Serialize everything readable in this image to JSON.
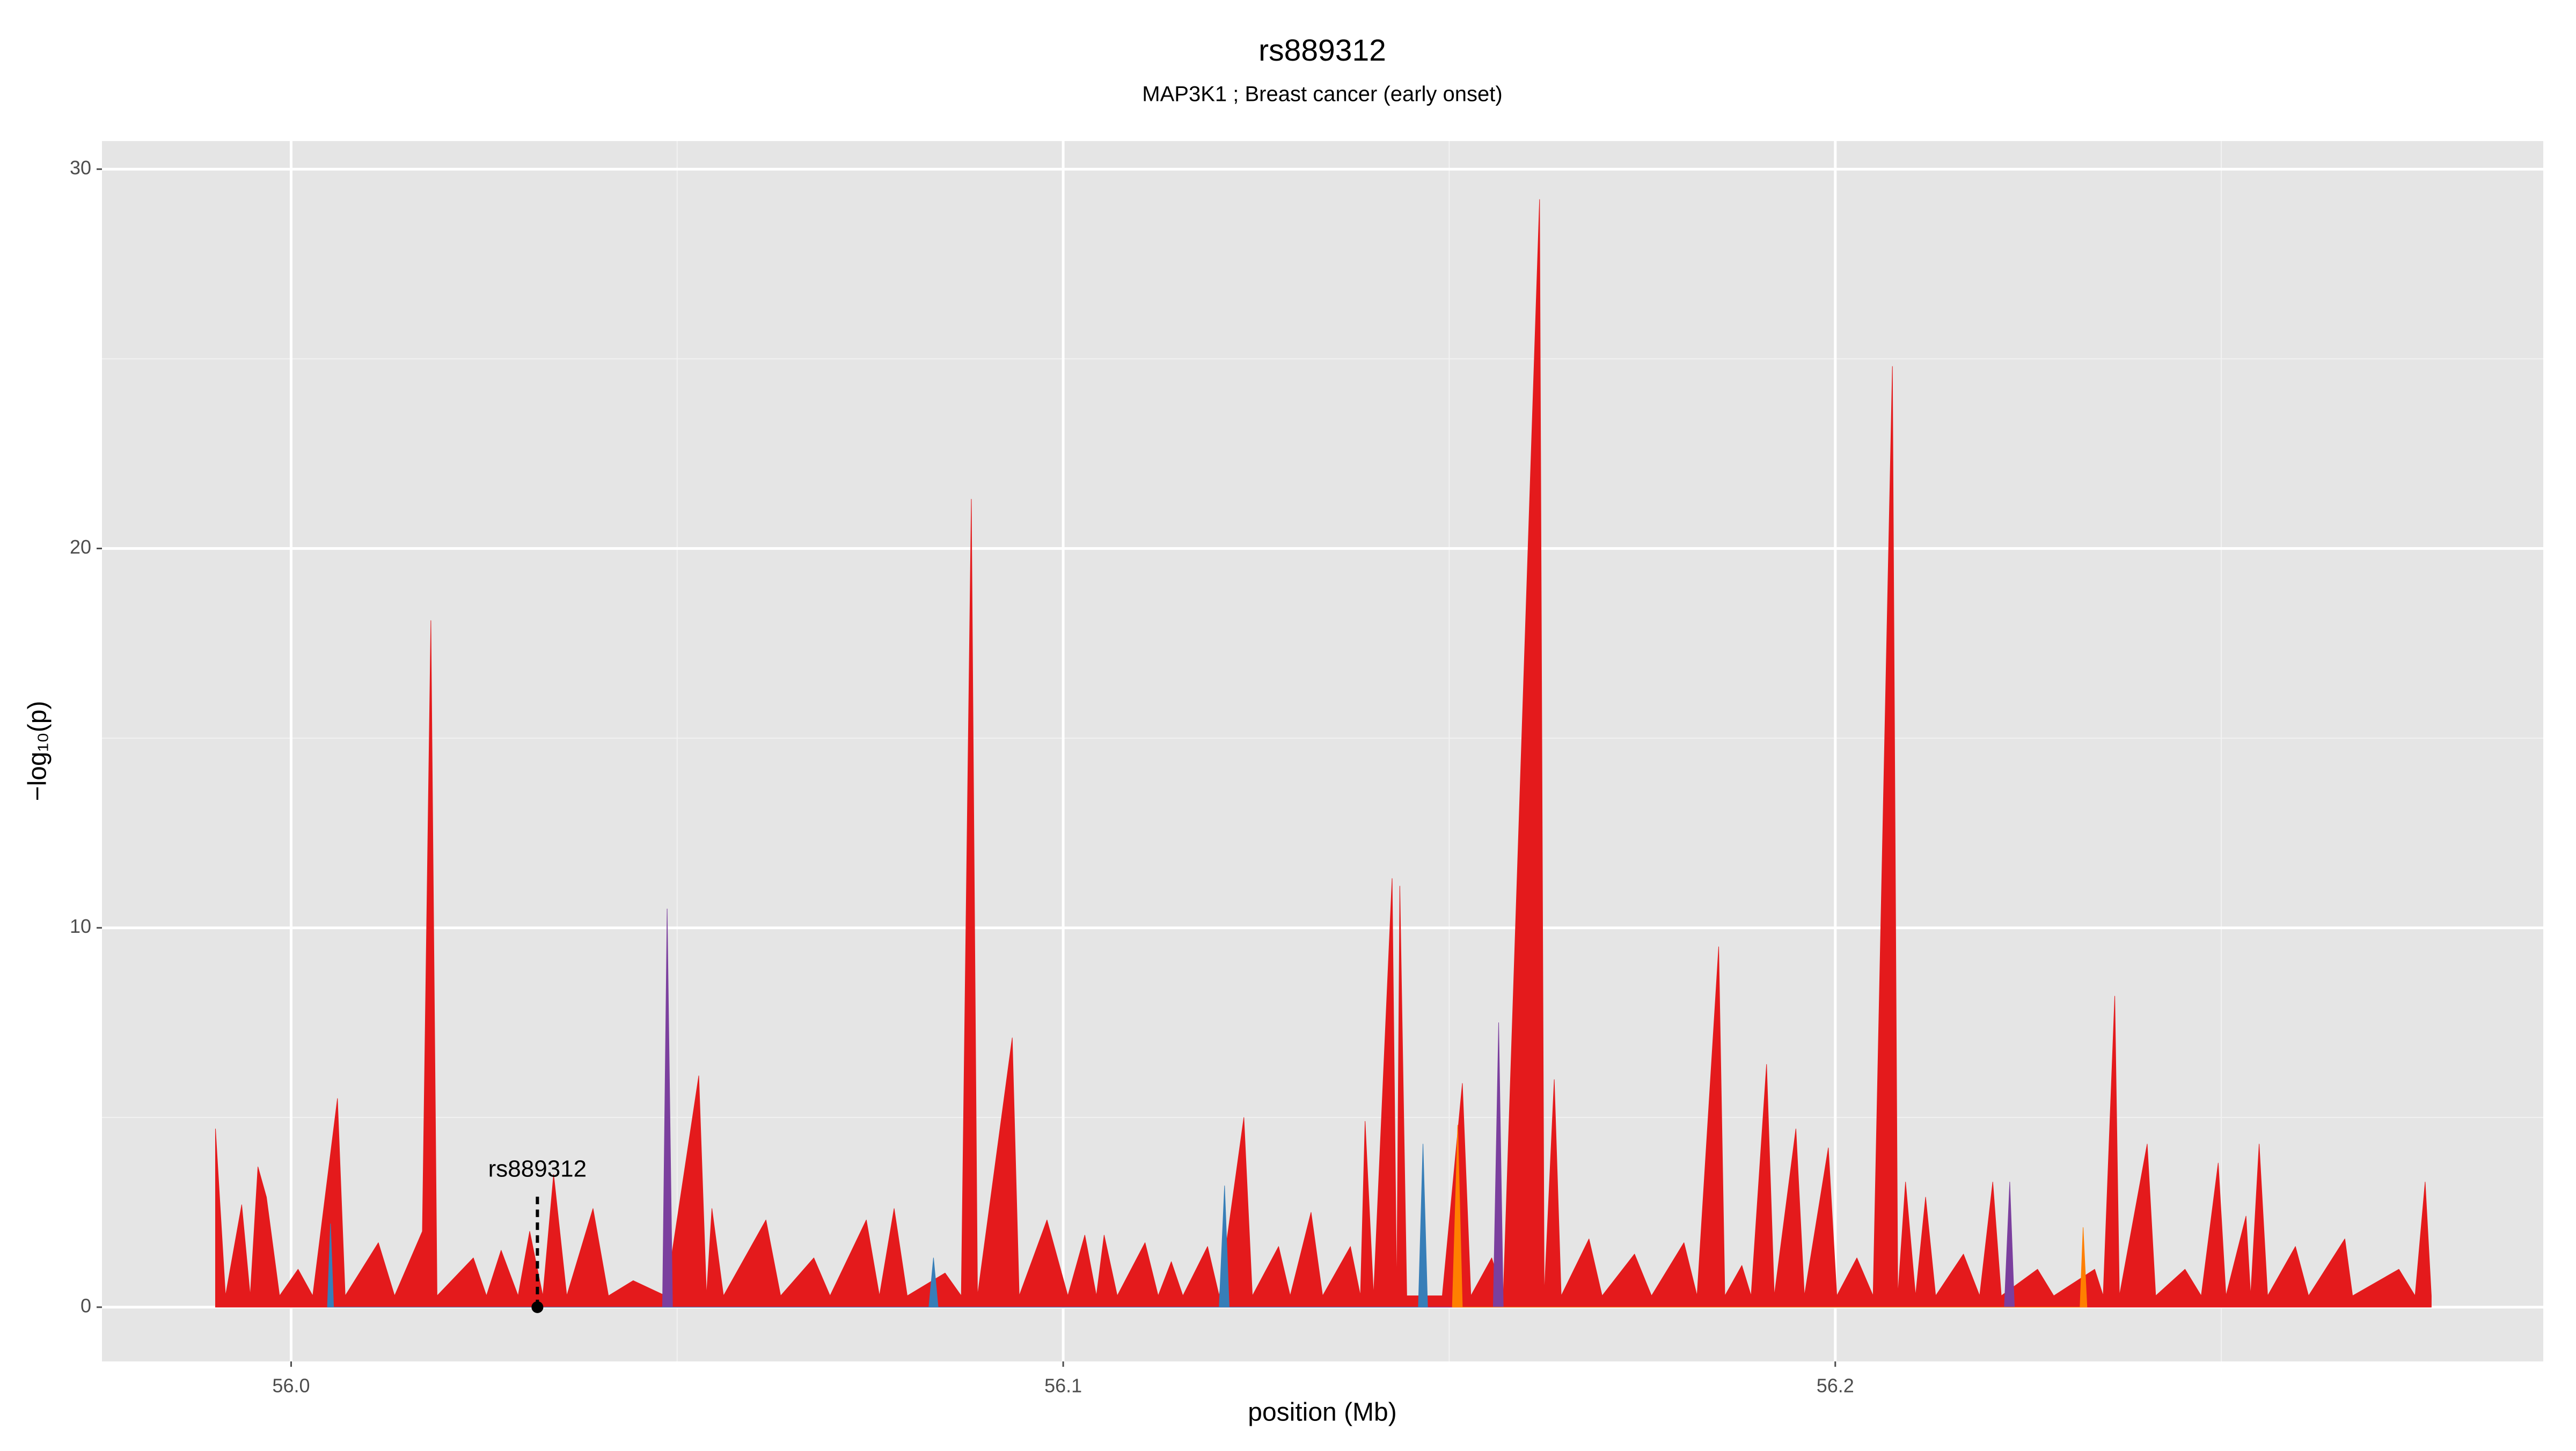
{
  "chart_data": {
    "type": "area",
    "title": "rs889312",
    "subtitle": "MAP3K1 ; Breast cancer (early onset)",
    "xlabel": "position (Mb)",
    "ylabel": "−log₁₀(p)",
    "xlim": [
      55.9755,
      56.2917
    ],
    "ylim": [
      -1.43,
      30.74
    ],
    "xticks": [
      {
        "value": 56.0,
        "label": "56.0"
      },
      56.1,
      56.2
    ],
    "yticks": [
      0,
      10,
      20,
      30
    ],
    "xminor": [
      56.05,
      56.15,
      56.25
    ],
    "yminor": [
      5,
      15,
      25
    ],
    "grid": true,
    "background": "#e5e5e5",
    "series": [
      {
        "color": "#e41a1c",
        "x": [
          55.9902,
          55.9915,
          55.9936,
          55.9947,
          55.9957,
          55.9968,
          55.9985,
          56.0009,
          56.0028,
          56.006,
          56.007,
          56.0113,
          56.0134,
          56.017,
          56.0181,
          56.0189,
          56.0236,
          56.0253,
          56.0272,
          56.0294,
          56.0309,
          56.0326,
          56.034,
          56.0357,
          56.0391,
          56.0411,
          56.0443,
          56.0485,
          56.0528,
          56.0538,
          56.0545,
          56.056,
          56.0615,
          56.0634,
          56.0677,
          56.0698,
          56.0745,
          56.0762,
          56.0781,
          56.0798,
          56.0847,
          56.0868,
          56.0881,
          56.0889,
          56.0934,
          56.0943,
          56.0979,
          56.1006,
          56.1028,
          56.1043,
          56.1053,
          56.107,
          56.1106,
          56.1123,
          56.114,
          56.1155,
          56.1187,
          56.1202,
          56.1234,
          56.1245,
          56.1279,
          56.1294,
          56.1321,
          56.1336,
          56.1372,
          56.1385,
          56.1391,
          56.1402,
          56.1426,
          56.1432,
          56.1436,
          56.1445,
          56.147,
          56.1491,
          56.1517,
          56.1528,
          56.1555,
          56.157,
          56.1617,
          56.1623,
          56.1636,
          56.1645,
          56.1681,
          56.1698,
          56.174,
          56.1762,
          56.1804,
          56.1821,
          56.1849,
          56.1857,
          56.1879,
          56.1891,
          56.1911,
          56.1921,
          56.1949,
          56.196,
          56.1991,
          56.2002,
          56.2028,
          56.2049,
          56.2074,
          56.2081,
          56.2091,
          56.2104,
          56.2117,
          56.213,
          56.2166,
          56.2187,
          56.2204,
          56.2215,
          56.2262,
          56.2283,
          56.2336,
          56.2347,
          56.2362,
          56.2368,
          56.2404,
          56.2415,
          56.2453,
          56.2474,
          56.2496,
          56.2506,
          56.2532,
          56.2538,
          56.2549,
          56.256,
          56.2596,
          56.2613,
          56.266,
          56.267,
          56.273,
          56.2751,
          56.2764,
          56.2772
        ],
        "values": [
          4.7,
          0.3,
          2.7,
          0.3,
          3.7,
          2.9,
          0.3,
          1.0,
          0.3,
          5.5,
          0.3,
          1.7,
          0.3,
          2.0,
          18.1,
          0.3,
          1.3,
          0.3,
          1.5,
          0.3,
          2.0,
          0.3,
          3.5,
          0.3,
          2.6,
          0.3,
          0.7,
          0.3,
          6.1,
          0.3,
          2.6,
          0.3,
          2.3,
          0.3,
          1.3,
          0.3,
          2.3,
          0.3,
          2.6,
          0.3,
          0.9,
          0.3,
          21.3,
          0.3,
          7.1,
          0.3,
          2.3,
          0.3,
          1.9,
          0.3,
          1.9,
          0.3,
          1.7,
          0.3,
          1.2,
          0.3,
          1.6,
          0.3,
          5.0,
          0.3,
          1.6,
          0.3,
          2.5,
          0.3,
          1.6,
          0.3,
          4.9,
          0.3,
          11.3,
          0.3,
          11.1,
          0.3,
          0.3,
          0.3,
          5.9,
          0.3,
          1.3,
          0.3,
          29.2,
          0.3,
          6.0,
          0.3,
          1.8,
          0.3,
          1.4,
          0.3,
          1.7,
          0.3,
          9.5,
          0.3,
          1.1,
          0.3,
          6.4,
          0.3,
          4.7,
          0.3,
          4.2,
          0.3,
          1.3,
          0.3,
          24.8,
          0.3,
          3.3,
          0.3,
          2.9,
          0.3,
          1.4,
          0.3,
          3.3,
          0.3,
          1.0,
          0.3,
          1.0,
          0.3,
          8.2,
          0.3,
          4.3,
          0.3,
          1.0,
          0.3,
          3.8,
          0.3,
          2.4,
          0.3,
          4.3,
          0.3,
          1.6,
          0.3,
          1.8,
          0.3,
          1.0,
          0.3,
          3.3,
          0.3
        ]
      },
      {
        "color": "#7b3f9e",
        "x": [
          56.0481,
          56.0487,
          56.0494,
          56.1557,
          56.1564,
          56.157,
          56.2219,
          56.2226,
          56.2232
        ],
        "values": [
          0,
          10.5,
          0,
          0,
          7.5,
          0,
          0,
          3.3,
          0
        ]
      },
      {
        "color": "#377eb8",
        "x": [
          56.0047,
          56.0051,
          56.0055,
          56.0826,
          56.0832,
          56.0838,
          56.1202,
          56.1209,
          56.1215,
          56.146,
          56.1466,
          56.1472
        ],
        "values": [
          0,
          2.2,
          0,
          0,
          1.3,
          0,
          0,
          3.2,
          0,
          0,
          4.3,
          0
        ]
      },
      {
        "color": "#ff7f00",
        "x": [
          56.1504,
          56.1511,
          56.1517,
          56.2317,
          56.2321,
          56.2326
        ],
        "values": [
          0,
          4.8,
          0,
          0,
          2.1,
          0
        ]
      }
    ],
    "annotation": {
      "text": "rs889312",
      "x": 56.0319,
      "y": 0
    }
  }
}
